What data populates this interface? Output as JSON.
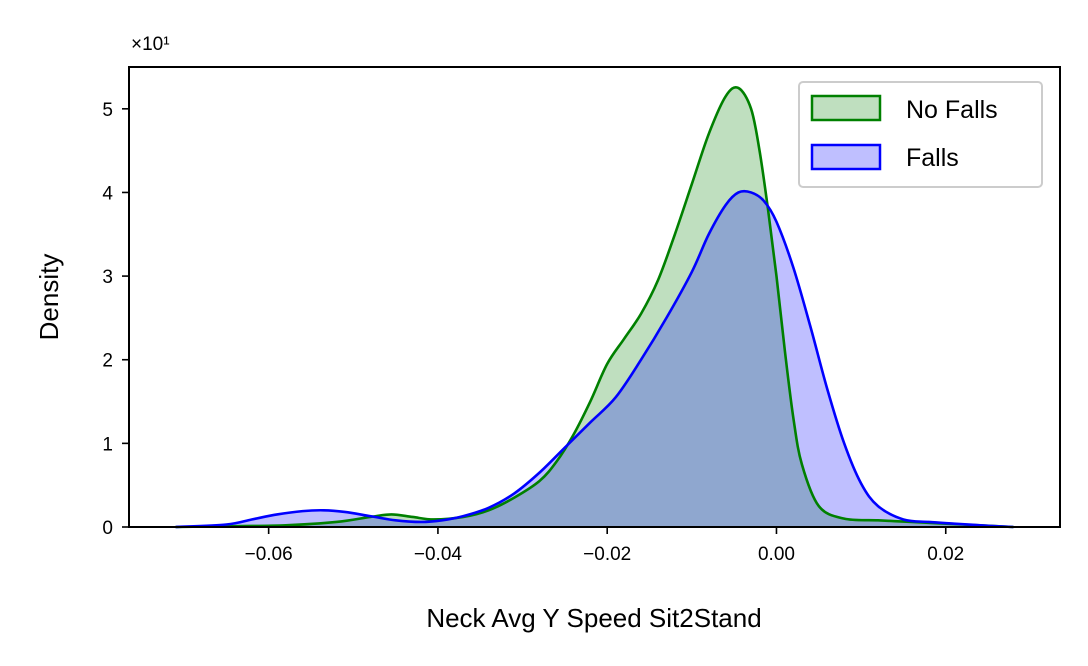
{
  "chart_data": {
    "type": "area",
    "title": "",
    "xlabel": "Neck Avg Y Speed Sit2Stand",
    "ylabel": "Density",
    "y_offset_label": "×10¹",
    "xlim": [
      -0.0765,
      0.0335
    ],
    "ylim": [
      0,
      55
    ],
    "xticks": [
      -0.06,
      -0.04,
      -0.02,
      0.0,
      0.02
    ],
    "xtick_labels": [
      "−0.06",
      "−0.04",
      "−0.02",
      "0.00",
      "0.02"
    ],
    "yticks": [
      0,
      10,
      20,
      30,
      40,
      50
    ],
    "ytick_labels": [
      "0",
      "1",
      "2",
      "3",
      "4",
      "5"
    ],
    "legend_position": "top-right",
    "grid": false,
    "series": [
      {
        "name": "No Falls",
        "color": "#008000",
        "fill": "#008000",
        "fill_opacity": 0.25,
        "x": [
          -0.071,
          -0.064,
          -0.058,
          -0.052,
          -0.048,
          -0.0455,
          -0.043,
          -0.0405,
          -0.037,
          -0.034,
          -0.031,
          -0.028,
          -0.026,
          -0.024,
          -0.022,
          -0.02,
          -0.018,
          -0.016,
          -0.014,
          -0.012,
          -0.01,
          -0.008,
          -0.006,
          -0.0045,
          -0.003,
          -0.002,
          -0.001,
          0.0,
          0.001,
          0.002,
          0.003,
          0.005,
          0.008,
          0.012,
          0.016,
          0.02,
          0.024,
          0.028
        ],
        "y": [
          0,
          0.1,
          0.2,
          0.6,
          1.2,
          1.5,
          1.2,
          0.9,
          1.2,
          2.0,
          3.5,
          5.5,
          7.8,
          11.0,
          15.0,
          19.5,
          22.5,
          25.5,
          29.5,
          35.0,
          41.0,
          47.0,
          51.5,
          52.5,
          50.0,
          45.0,
          38.0,
          30.0,
          21.0,
          13.0,
          7.5,
          2.5,
          1.0,
          0.8,
          0.6,
          0.4,
          0.2,
          0.0
        ]
      },
      {
        "name": "Falls",
        "color": "#0000ff",
        "fill": "#0000ff",
        "fill_opacity": 0.25,
        "x": [
          -0.071,
          -0.065,
          -0.062,
          -0.059,
          -0.056,
          -0.0535,
          -0.051,
          -0.048,
          -0.045,
          -0.042,
          -0.0395,
          -0.037,
          -0.034,
          -0.031,
          -0.028,
          -0.025,
          -0.022,
          -0.019,
          -0.016,
          -0.013,
          -0.01,
          -0.008,
          -0.006,
          -0.0045,
          -0.003,
          -0.0015,
          0.0,
          0.002,
          0.004,
          0.006,
          0.008,
          0.01,
          0.012,
          0.015,
          0.018,
          0.021,
          0.025,
          0.028
        ],
        "y": [
          0,
          0.3,
          0.9,
          1.5,
          1.9,
          2.0,
          1.8,
          1.3,
          0.8,
          0.6,
          0.8,
          1.3,
          2.3,
          4.0,
          6.5,
          9.5,
          12.5,
          15.5,
          20.0,
          25.0,
          30.5,
          35.0,
          38.5,
          40.0,
          40.0,
          39.0,
          36.5,
          31.0,
          24.0,
          16.5,
          10.0,
          5.2,
          2.5,
          0.9,
          0.6,
          0.4,
          0.15,
          0.0
        ]
      }
    ]
  }
}
